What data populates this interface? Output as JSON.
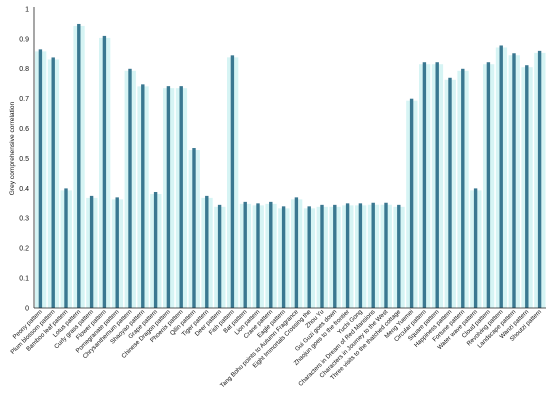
{
  "chart_data": {
    "type": "bar",
    "title": "",
    "xlabel": "",
    "ylabel": "Grey comprehensive correlation",
    "ylim": [
      0,
      1
    ],
    "yticks": [
      0,
      0.1,
      0.2,
      0.3,
      0.4,
      0.5,
      0.6,
      0.7,
      0.8,
      0.9,
      1
    ],
    "grid": false,
    "colors": {
      "bar": "#3a7891",
      "glow": "#c8f0f0",
      "axis": "#222222"
    },
    "categories": [
      "Peony pattern",
      "Plum blossom pattern",
      "Bamboo leaf pattern",
      "Lotus pattern",
      "Curly grass pattern",
      "Flower pattern",
      "Pomegranate pattern",
      "Chrysanthemum pattern",
      "Shaoyao pattern",
      "Grape pattern",
      "Chinese Dragon pattern",
      "Phoenix pattern",
      "Qilin pattern",
      "Tiger pattern",
      "Deer pattern",
      "Fish pattern",
      "Bat pattern",
      "Lion pattern",
      "Crane pattern",
      "Eagle pattern",
      "Tang Bohu points to Autumn Fragrance",
      "Eight Immortals Crossing the",
      "Zhou Yu",
      "Gui Guzi goes down",
      "Zhaojun goes to the frontier",
      "Yuchi Gong",
      "Characters in Dream of Red Mansions",
      "Characters in Journey to the West",
      "Three visits to the thatched cottage",
      "Meng Yuemei",
      "Circular pattern",
      "Square pattern",
      "Happiness pattern",
      "Fortune pattern",
      "Water wave pattern",
      "Cloud pattern",
      "Revolving pattern",
      "Landscape pattern",
      "Wanzi pattern",
      "Shoutzi pattern"
    ],
    "values": [
      0.865,
      0.838,
      0.4,
      0.95,
      0.375,
      0.91,
      0.37,
      0.8,
      0.748,
      0.388,
      0.742,
      0.742,
      0.535,
      0.375,
      0.345,
      0.845,
      0.355,
      0.35,
      0.355,
      0.34,
      0.37,
      0.34,
      0.345,
      0.345,
      0.35,
      0.35,
      0.352,
      0.352,
      0.345,
      0.7,
      0.822,
      0.822,
      0.77,
      0.8,
      0.4,
      0.822,
      0.878,
      0.852,
      0.812,
      0.86
    ]
  }
}
